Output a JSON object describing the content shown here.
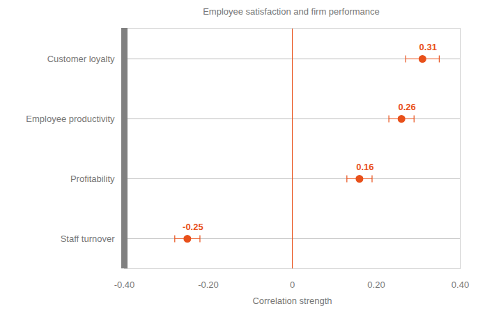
{
  "chart_data": {
    "type": "dot",
    "title": "Employee satisfaction and firm performance",
    "orientation": "horizontal",
    "categories": [
      "Customer loyalty",
      "Employee productivity",
      "Profitability",
      "Staff turnover"
    ],
    "values": [
      0.31,
      0.26,
      0.16,
      -0.25
    ],
    "errors": [
      0.04,
      0.03,
      0.03,
      0.03
    ],
    "color": "#e8501a",
    "xlabel": "Correlation strength",
    "xlim": [
      -0.4,
      0.4
    ],
    "xticks": [
      {
        "value": -0.4,
        "label": "-0.40"
      },
      {
        "value": -0.2,
        "label": "-0.20"
      },
      0,
      {
        "value": 0.2,
        "label": "0.20"
      },
      {
        "value": 0.4,
        "label": "0.40"
      }
    ],
    "grid": true,
    "data_labels": true
  }
}
